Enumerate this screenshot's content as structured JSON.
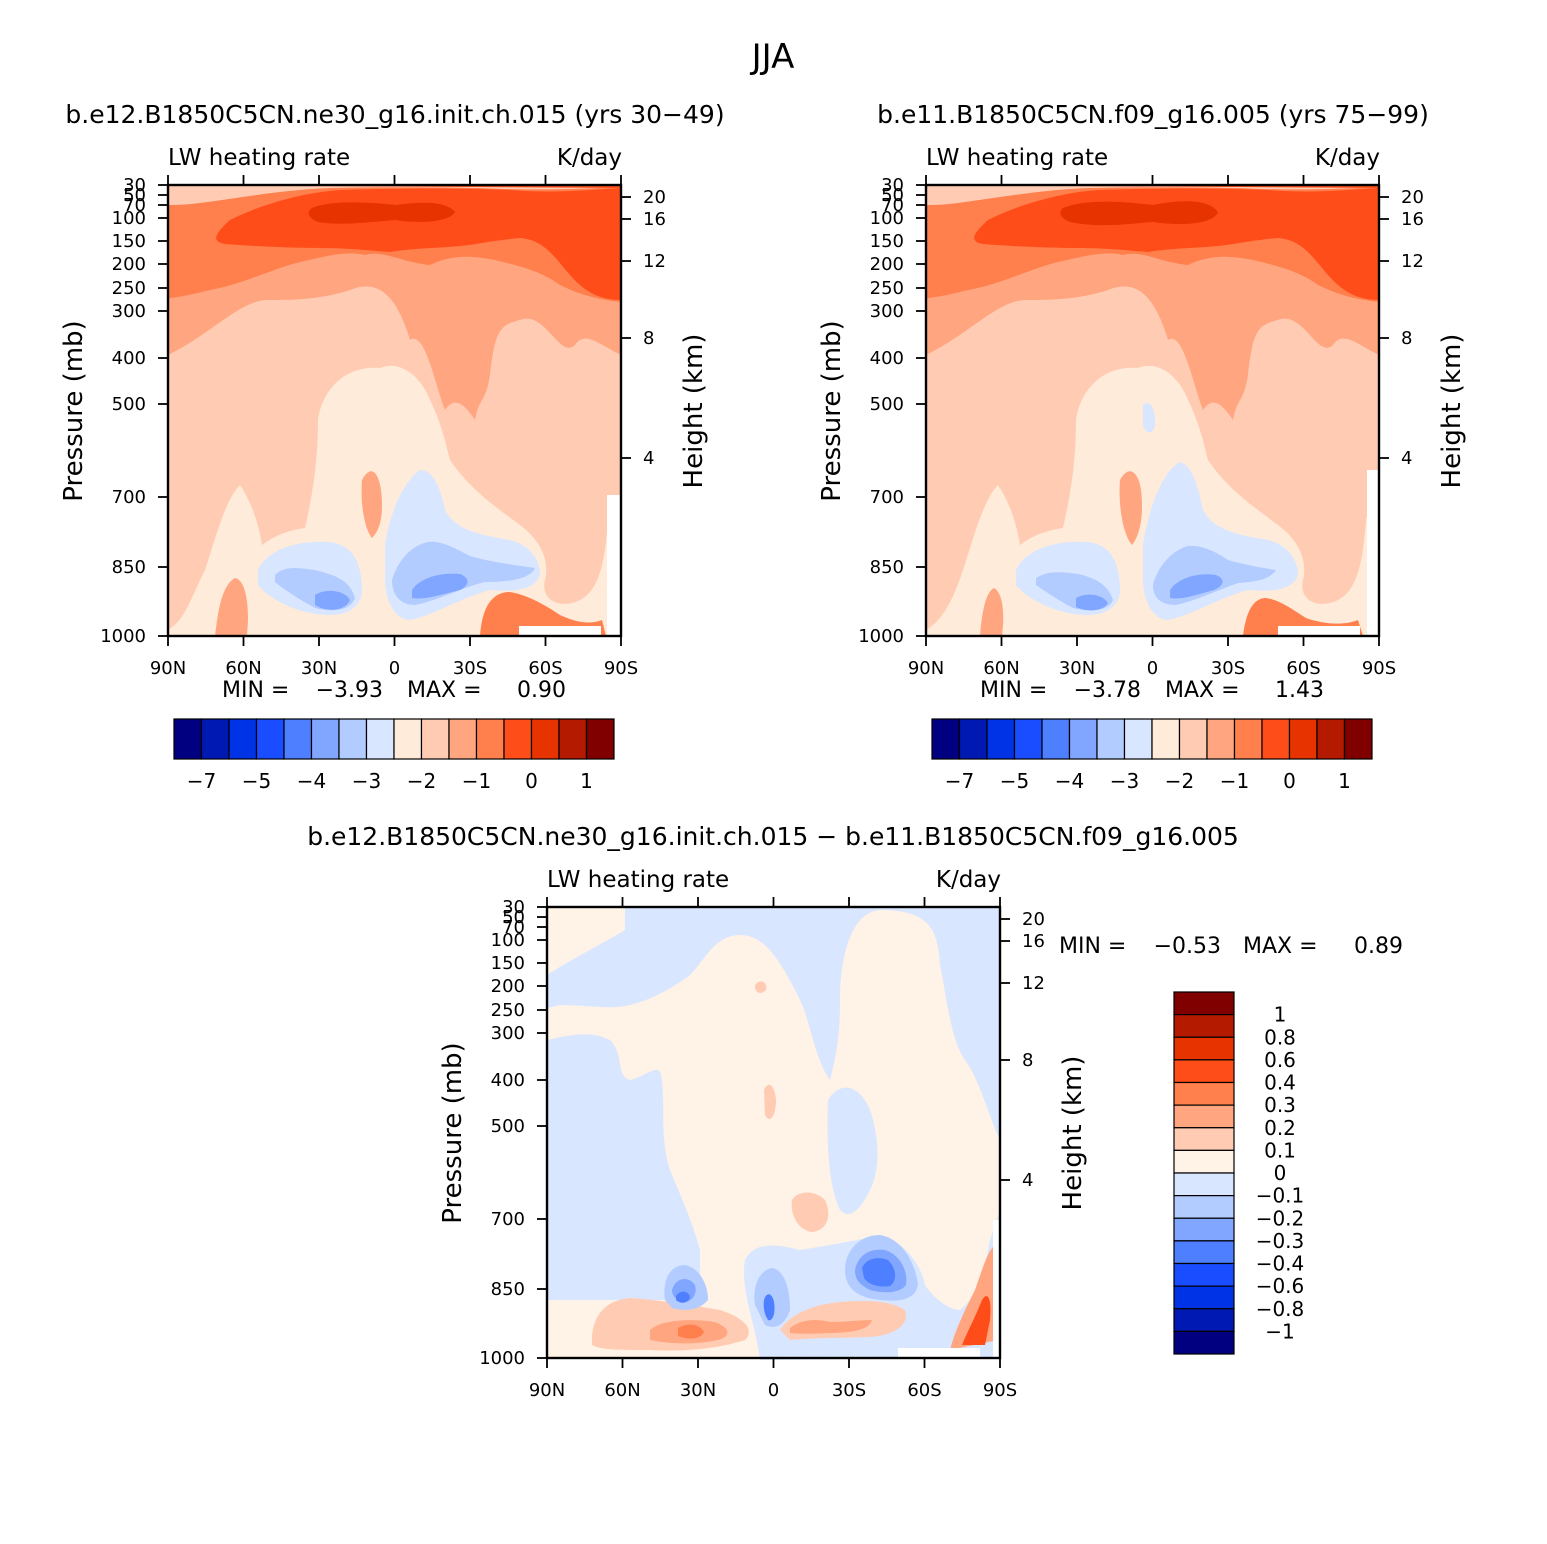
{
  "figure_title": "JJA",
  "colors": {
    "abs_scale": [
      "#000080",
      "#0019B2",
      "#0033E6",
      "#1A4DFF",
      "#4D7FFF",
      "#80A6FF",
      "#B3CCFF",
      "#D9E6FF",
      "#FFEBD9",
      "#FFCCB3",
      "#FFA680",
      "#FF7F4D",
      "#FF4D1A",
      "#E63300",
      "#B31A00",
      "#800000"
    ],
    "diff_scale": [
      "#000080",
      "#0019B2",
      "#0033E6",
      "#1A4DFF",
      "#4D7FFF",
      "#80A6FF",
      "#B3CCFF",
      "#D9E6FF",
      "#FFF2E6",
      "#FFCCB3",
      "#FFA680",
      "#FF7F4D",
      "#FF4D1A",
      "#E63300",
      "#B31A00",
      "#800000"
    ]
  },
  "chart_data": [
    {
      "type": "heatmap",
      "id": "case1",
      "title": "b.e12.B1850C5CN.ne30_g16.init.ch.015 (yrs 30-49)",
      "left_label": "LW heating rate",
      "right_label": "K/day",
      "xlabel": "",
      "ylabel": "Pressure (mb)",
      "ylabel_right": "Height (km)",
      "x_ticks": [
        "90N",
        "60N",
        "30N",
        "0",
        "30S",
        "60S",
        "90S"
      ],
      "y_ticks": [
        "30",
        "50",
        "70",
        "100",
        "150",
        "200",
        "250",
        "300",
        "400",
        "500",
        "700",
        "850",
        "1000"
      ],
      "height_ticks": [
        "20",
        "16",
        "12",
        "8",
        "4"
      ],
      "min_label": "MIN =",
      "min_value": "-3.93",
      "max_label": "MAX =",
      "max_value": "0.90",
      "colorbar_labels": [
        "-7",
        "-5",
        "-4",
        "-3",
        "-2",
        "-1",
        "0",
        "1"
      ]
    },
    {
      "type": "heatmap",
      "id": "case2",
      "title": "b.e11.B1850C5CN.f09_g16.005 (yrs 75-99)",
      "left_label": "LW heating rate",
      "right_label": "K/day",
      "xlabel": "",
      "ylabel": "Pressure (mb)",
      "ylabel_right": "Height (km)",
      "x_ticks": [
        "90N",
        "60N",
        "30N",
        "0",
        "30S",
        "60S",
        "90S"
      ],
      "y_ticks": [
        "30",
        "50",
        "70",
        "100",
        "150",
        "200",
        "250",
        "300",
        "400",
        "500",
        "700",
        "850",
        "1000"
      ],
      "height_ticks": [
        "20",
        "16",
        "12",
        "8",
        "4"
      ],
      "min_label": "MIN =",
      "min_value": "-3.78",
      "max_label": "MAX =",
      "max_value": "1.43",
      "colorbar_labels": [
        "-7",
        "-5",
        "-4",
        "-3",
        "-2",
        "-1",
        "0",
        "1"
      ]
    },
    {
      "type": "heatmap",
      "id": "diff",
      "title": "b.e12.B1850C5CN.ne30_g16.init.ch.015 - b.e11.B1850C5CN.f09_g16.005",
      "left_label": "LW heating rate",
      "right_label": "K/day",
      "xlabel": "",
      "ylabel": "Pressure (mb)",
      "ylabel_right": "Height (km)",
      "x_ticks": [
        "90N",
        "60N",
        "30N",
        "0",
        "30S",
        "60S",
        "90S"
      ],
      "y_ticks": [
        "30",
        "50",
        "70",
        "100",
        "150",
        "200",
        "250",
        "300",
        "400",
        "500",
        "700",
        "850",
        "1000"
      ],
      "height_ticks": [
        "20",
        "16",
        "12",
        "8",
        "4"
      ],
      "min_label": "MIN =",
      "min_value": "-0.53",
      "max_label": "MAX =",
      "max_value": "0.89",
      "colorbar_labels": [
        "1",
        "0.8",
        "0.6",
        "0.4",
        "0.3",
        "0.2",
        "0.1",
        "0",
        "-0.1",
        "-0.2",
        "-0.3",
        "-0.4",
        "-0.6",
        "-0.8",
        "-1"
      ]
    }
  ]
}
